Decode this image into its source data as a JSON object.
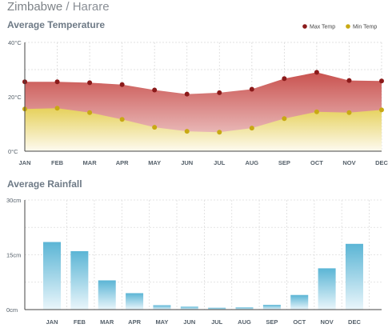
{
  "header": {
    "country": "Zimbabwe",
    "separator": "/",
    "city": "Harare"
  },
  "chart_data": [
    {
      "type": "area",
      "title": "Average Temperature",
      "categories": [
        "JAN",
        "FEB",
        "MAR",
        "APR",
        "MAY",
        "JUN",
        "JUL",
        "AUG",
        "SEP",
        "OCT",
        "NOV",
        "DEC"
      ],
      "series": [
        {
          "name": "Max Temp",
          "values": [
            25.5,
            25.5,
            25.2,
            24.5,
            22.5,
            21.0,
            21.5,
            22.8,
            26.7,
            29.0,
            26.0,
            25.8
          ],
          "color": "#8b1a1a"
        },
        {
          "name": "Min Temp",
          "values": [
            15.5,
            15.8,
            14.2,
            11.7,
            8.8,
            7.3,
            7.0,
            8.5,
            12.0,
            14.5,
            14.2,
            15.2
          ],
          "color": "#c8a914"
        }
      ],
      "ylim": [
        0,
        40
      ],
      "yticks": [
        "0°C",
        "20°C",
        "40°C"
      ],
      "ytick_values": [
        0,
        20,
        40
      ],
      "legend": "top-right",
      "grid": true
    },
    {
      "type": "bar",
      "title": "Average Rainfall",
      "categories": [
        "JAN",
        "FEB",
        "MAR",
        "APR",
        "MAY",
        "JUN",
        "JUL",
        "AUG",
        "SEP",
        "OCT",
        "NOV",
        "DEC"
      ],
      "values": [
        18.5,
        16.0,
        8.0,
        4.5,
        1.2,
        0.8,
        0.5,
        0.6,
        1.3,
        4.0,
        11.3,
        18.0
      ],
      "color": "#5bb5d5",
      "ylim": [
        0,
        30
      ],
      "yticks": [
        "0cm",
        "15cm",
        "30cm"
      ],
      "ytick_values": [
        0,
        15,
        30
      ],
      "grid": true
    }
  ]
}
